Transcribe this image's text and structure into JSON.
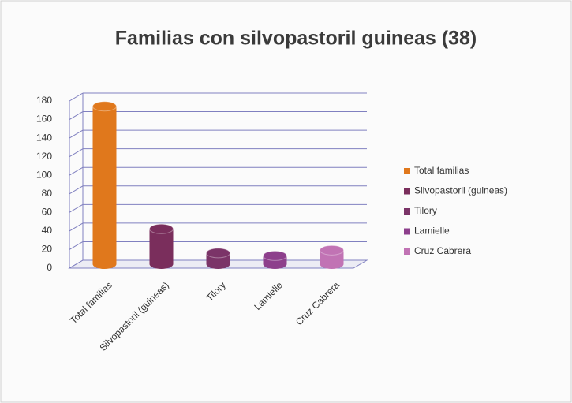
{
  "chart_data": {
    "type": "bar",
    "title": "Familias con silvopastoril guineas (38)",
    "categories": [
      "Total familias",
      "Silvopastoril (guineas)",
      "Tilory",
      "Lamielle",
      "Cruz Cabrera"
    ],
    "values": [
      170,
      38,
      12,
      9,
      15
    ],
    "colors": [
      "#e0781c",
      "#7a2e5c",
      "#7b3468",
      "#8d3f8c",
      "#c173b4"
    ],
    "ylim": [
      0,
      180
    ],
    "yticks": [
      0,
      20,
      40,
      60,
      80,
      100,
      120,
      140,
      160,
      180
    ],
    "grid": true,
    "legend": "right"
  }
}
